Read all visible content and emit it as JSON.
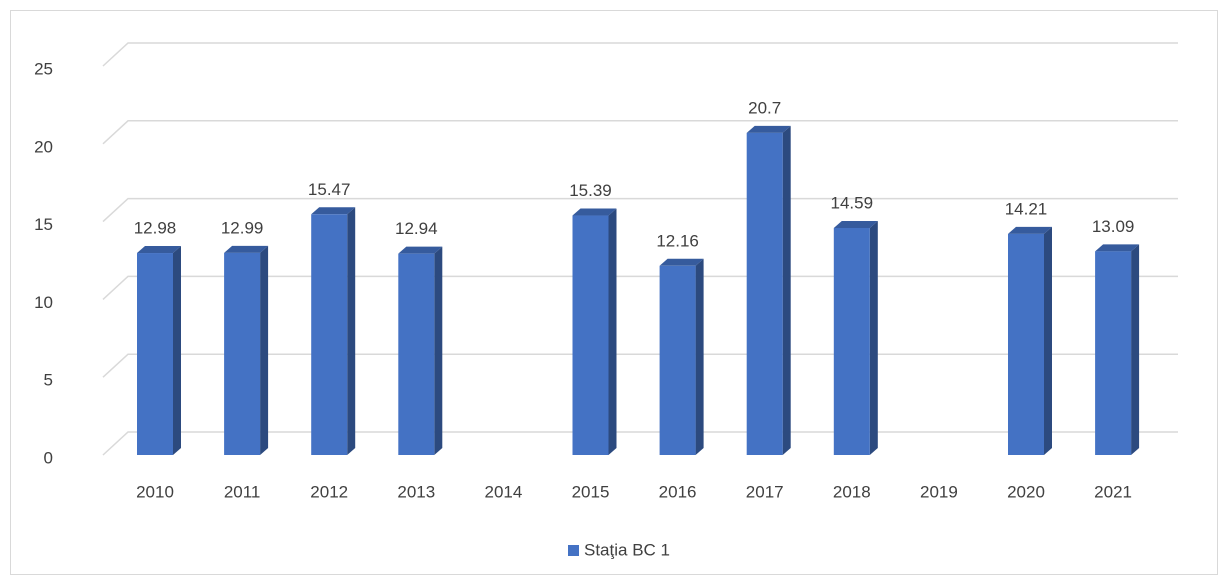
{
  "chart_data": {
    "type": "bar3d",
    "categories": [
      "2010",
      "2011",
      "2012",
      "2013",
      "2014",
      "2015",
      "2016",
      "2017",
      "2018",
      "2019",
      "2020",
      "2021"
    ],
    "series": [
      {
        "name": "Staţia BC 1",
        "color": "#4472c4",
        "values": [
          12.98,
          12.99,
          15.47,
          12.94,
          null,
          15.39,
          12.16,
          20.7,
          14.59,
          null,
          14.21,
          13.09
        ]
      }
    ],
    "ylim": [
      0,
      25
    ],
    "yticks": [
      0,
      5,
      10,
      15,
      20,
      25
    ],
    "grid": true,
    "legend": "bottom"
  }
}
